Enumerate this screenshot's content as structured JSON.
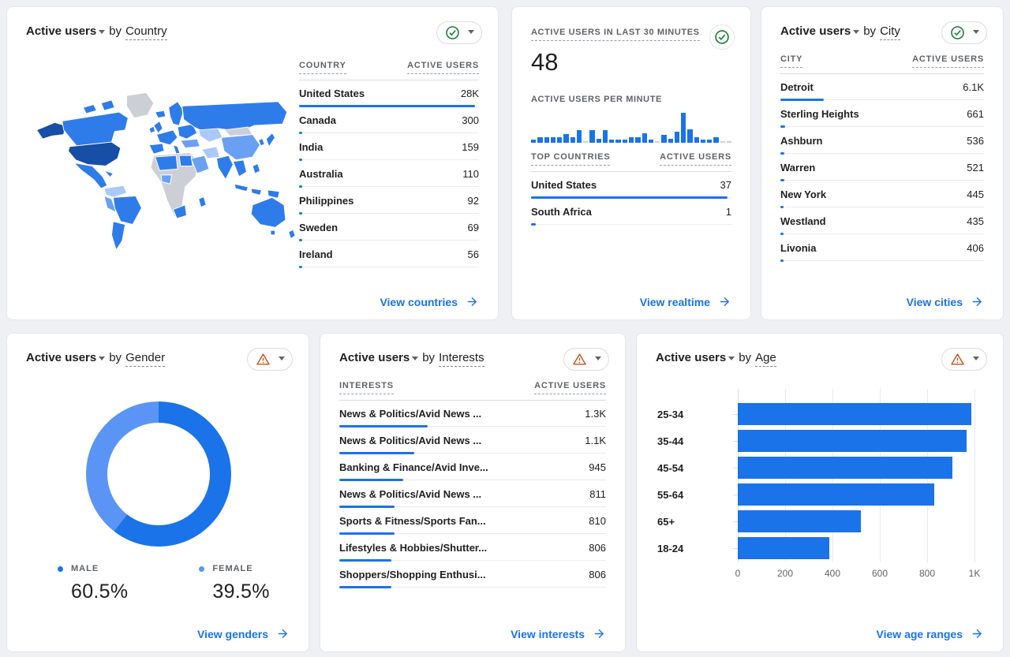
{
  "colors": {
    "accent": "#1a73e8",
    "text": "#202124",
    "muted": "#5f6368",
    "divider": "#e8eaed",
    "header_line": "#dadce0",
    "card_border": "#e3e6ec",
    "background": "#eef0f4",
    "ok_green": "#188038",
    "warning_orange": "#c5531b",
    "map": {
      "dark": "#174ea6",
      "medium": "#2e7ce9",
      "light": "#69a0f3",
      "pale": "#abc8fa",
      "no_data": "#ccd0d6"
    },
    "donut_male": "#1a73e8",
    "donut_female": "#5a95f5"
  },
  "cards": {
    "country": {
      "title": {
        "metric": "Active users",
        "by": "by",
        "dimension": "Country"
      },
      "status": "ok",
      "link": "View countries"
    },
    "realtime": {
      "label_30min": "ACTIVE USERS IN LAST 30 MINUTES",
      "value": "48",
      "label_per_minute": "ACTIVE USERS PER MINUTE",
      "status": "ok",
      "link": "View realtime"
    },
    "city": {
      "title": {
        "metric": "Active users",
        "by": "by",
        "dimension": "City"
      },
      "status": "ok",
      "link": "View cities"
    },
    "gender": {
      "title": {
        "metric": "Active users",
        "by": "by",
        "dimension": "Gender"
      },
      "status": "warning",
      "link": "View genders"
    },
    "interests": {
      "title": {
        "metric": "Active users",
        "by": "by",
        "dimension": "Interests"
      },
      "status": "warning",
      "link": "View interests"
    },
    "age": {
      "title": {
        "metric": "Active users",
        "by": "by",
        "dimension": "Age"
      },
      "status": "warning",
      "link": "View age ranges"
    }
  },
  "chart_data": [
    {
      "id": "country_table",
      "type": "table",
      "title": "Active users by Country",
      "columns": [
        "COUNTRY",
        "ACTIVE USERS"
      ],
      "rows": [
        [
          "United States",
          "28K"
        ],
        [
          "Canada",
          "300"
        ],
        [
          "India",
          "159"
        ],
        [
          "Australia",
          "110"
        ],
        [
          "Philippines",
          "92"
        ],
        [
          "Sweden",
          "69"
        ],
        [
          "Ireland",
          "56"
        ]
      ],
      "bar_pct": [
        98,
        1.6,
        1.2,
        1.0,
        0.9,
        0.8,
        0.7
      ]
    },
    {
      "id": "realtime_minutes",
      "type": "bar",
      "title": "ACTIVE USERS PER MINUTE",
      "x_desc": "last 30 minutes, unlabeled axis, relative heights (0 = idle minute)",
      "values": [
        4,
        7,
        7,
        7,
        7,
        11,
        7,
        16,
        0,
        16,
        5,
        16,
        4,
        4,
        4,
        7,
        7,
        12,
        4,
        0,
        10,
        5,
        14,
        38,
        17,
        7,
        4,
        4,
        7,
        0,
        0
      ],
      "value_max": 38
    },
    {
      "id": "realtime_top_countries",
      "type": "table",
      "title": "Realtime top countries",
      "columns": [
        "TOP COUNTRIES",
        "ACTIVE USERS"
      ],
      "rows": [
        [
          "United States",
          "37"
        ],
        [
          "South Africa",
          "1"
        ]
      ],
      "bar_pct": [
        98,
        2.5
      ]
    },
    {
      "id": "city_table",
      "type": "table",
      "title": "Active users by City",
      "columns": [
        "CITY",
        "ACTIVE USERS"
      ],
      "rows": [
        [
          "Detroit",
          "6.1K"
        ],
        [
          "Sterling Heights",
          "661"
        ],
        [
          "Ashburn",
          "536"
        ],
        [
          "Warren",
          "521"
        ],
        [
          "New York",
          "445"
        ],
        [
          "Westland",
          "435"
        ],
        [
          "Livonia",
          "406"
        ]
      ],
      "bar_pct": [
        21.5,
        2.4,
        1.9,
        1.9,
        1.6,
        1.6,
        1.5
      ]
    },
    {
      "id": "gender_donut",
      "type": "pie",
      "title": "Active users by Gender",
      "labels": [
        "MALE",
        "FEMALE"
      ],
      "values": [
        60.5,
        39.5
      ],
      "display": [
        "60.5%",
        "39.5%"
      ],
      "colors": [
        "#1a73e8",
        "#5a95f5"
      ],
      "legend_position": "bottom"
    },
    {
      "id": "interests_table",
      "type": "table",
      "title": "Active users by Interests",
      "columns": [
        "INTERESTS",
        "ACTIVE USERS"
      ],
      "rows": [
        [
          "News & Politics/Avid News ...",
          "1.3K"
        ],
        [
          "News & Politics/Avid News ...",
          "1.1K"
        ],
        [
          "Banking & Finance/Avid Inve...",
          "945"
        ],
        [
          "News & Politics/Avid News ...",
          "811"
        ],
        [
          "Sports & Fitness/Sports Fan...",
          "810"
        ],
        [
          "Lifestyles & Hobbies/Shutter...",
          "806"
        ],
        [
          "Shoppers/Shopping Enthusi...",
          "806"
        ]
      ],
      "bar_pct": [
        33,
        28,
        24,
        20.6,
        20.6,
        19.5,
        19.5
      ]
    },
    {
      "id": "age_bars",
      "type": "bar",
      "title": "Active users by Age",
      "orientation": "horizontal",
      "grid": true,
      "categories": [
        "25-34",
        "35-44",
        "45-54",
        "55-64",
        "65+",
        "18-24"
      ],
      "values": [
        985,
        965,
        905,
        830,
        520,
        385
      ],
      "xlim": [
        0,
        1000
      ],
      "xticks": [
        "0",
        "200",
        "400",
        "600",
        "800",
        "1K"
      ]
    }
  ]
}
